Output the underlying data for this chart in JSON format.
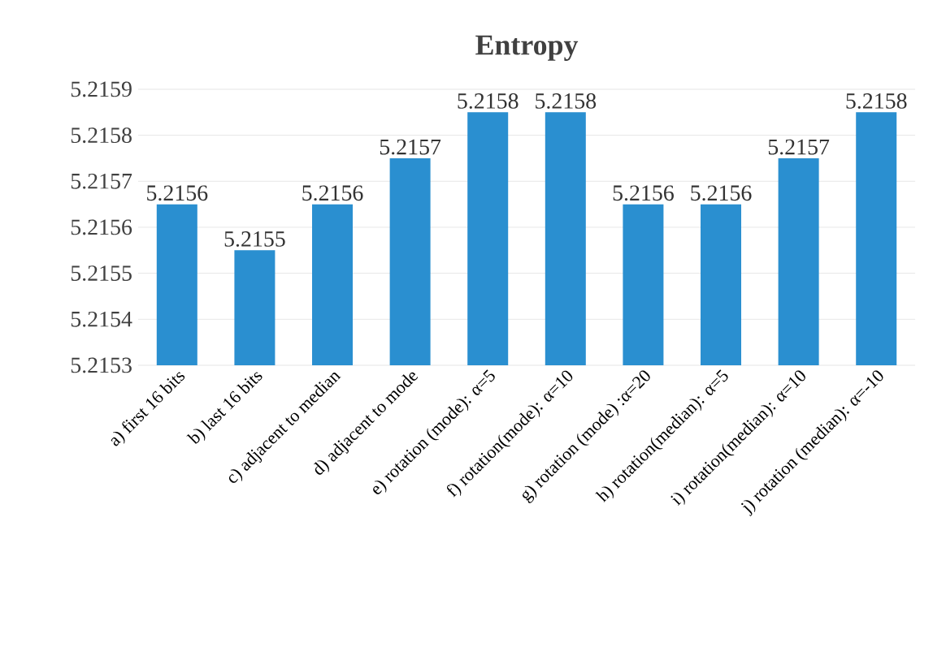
{
  "chart_data": {
    "type": "bar",
    "title": "Entropy",
    "categories": [
      "a) first 16 bits",
      "b) last 16 bits",
      "c) adjacent to median",
      "d) adjacent to mode",
      "e) rotation (mode): α=5",
      "f) rotation(mode): α=10",
      "g) rotation (mode) :α=20",
      "h) rotation(median): α=5",
      "i) rotation(median): α=10",
      "j) rotation (median): α=-10"
    ],
    "values": [
      5.21565,
      5.21555,
      5.21565,
      5.21575,
      5.21585,
      5.21585,
      5.21565,
      5.21565,
      5.21575,
      5.21585
    ],
    "value_labels": [
      "5.2156",
      "5.2155",
      "5.2156",
      "5.2157",
      "5.2158",
      "5.2158",
      "5.2156",
      "5.2156",
      "5.2157",
      "5.2158"
    ],
    "color": "#2a8fd0",
    "ylim": [
      5.2153,
      5.2159
    ],
    "yticks": [
      5.2153,
      5.2154,
      5.2155,
      5.2156,
      5.2157,
      5.2158,
      5.2159
    ],
    "grid": "y"
  }
}
